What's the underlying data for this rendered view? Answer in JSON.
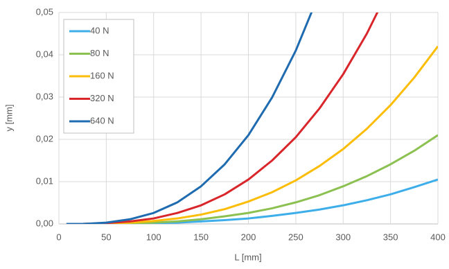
{
  "chart_data": {
    "type": "line",
    "x_label": "L [mm]",
    "y_label": "y [mm]",
    "x": [
      8,
      25,
      50,
      75,
      100,
      125,
      150,
      175,
      200,
      225,
      250,
      275,
      300,
      325,
      350,
      375,
      400
    ],
    "series": [
      {
        "name": "40 N",
        "color": "#3daee9",
        "values": [
          0.0,
          0.0,
          0.0,
          0.0001,
          0.0002,
          0.0003,
          0.0006,
          0.0009,
          0.0013,
          0.0019,
          0.0026,
          0.0034,
          0.0044,
          0.0056,
          0.007,
          0.0087,
          0.0105
        ]
      },
      {
        "name": "80 N",
        "color": "#8cc152",
        "values": [
          0.0,
          0.0,
          0.0,
          0.0001,
          0.0003,
          0.0006,
          0.0011,
          0.0018,
          0.0026,
          0.0037,
          0.0051,
          0.0068,
          0.0089,
          0.0113,
          0.0141,
          0.0173,
          0.021
        ]
      },
      {
        "name": "160 N",
        "color": "#fbbd08",
        "values": [
          0.0,
          0.0,
          0.0001,
          0.0003,
          0.0007,
          0.0013,
          0.0022,
          0.0035,
          0.0053,
          0.0075,
          0.0103,
          0.0137,
          0.0177,
          0.0225,
          0.0281,
          0.0346,
          0.042
        ]
      },
      {
        "name": "320 N",
        "color": "#d9262b",
        "values": [
          0.0,
          0.0,
          0.0002,
          0.0006,
          0.0013,
          0.0026,
          0.0044,
          0.007,
          0.0105,
          0.015,
          0.0205,
          0.0273,
          0.0354,
          0.045,
          0.0563,
          null,
          null
        ]
      },
      {
        "name": "640 N",
        "color": "#1f6bb0",
        "values": [
          0.0,
          0.0,
          0.0003,
          0.0011,
          0.0026,
          0.0051,
          0.0089,
          0.0141,
          0.021,
          0.0299,
          0.041,
          0.0546,
          null,
          null,
          null,
          null,
          null
        ]
      }
    ],
    "xlim": [
      0,
      400
    ],
    "xticks": [
      0,
      50,
      100,
      150,
      200,
      250,
      300,
      350,
      400
    ],
    "ylim": [
      0,
      0.05
    ],
    "yticks": [
      {
        "value": 0,
        "label": "0,00"
      },
      {
        "value": 0.01,
        "label": "0,01"
      },
      {
        "value": 0.02,
        "label": "0,02"
      },
      {
        "value": 0.03,
        "label": "0,03"
      },
      {
        "value": 0.04,
        "label": "0,04"
      },
      {
        "value": 0.05,
        "label": "0,05"
      }
    ],
    "grid": true,
    "legend": "top-left"
  }
}
